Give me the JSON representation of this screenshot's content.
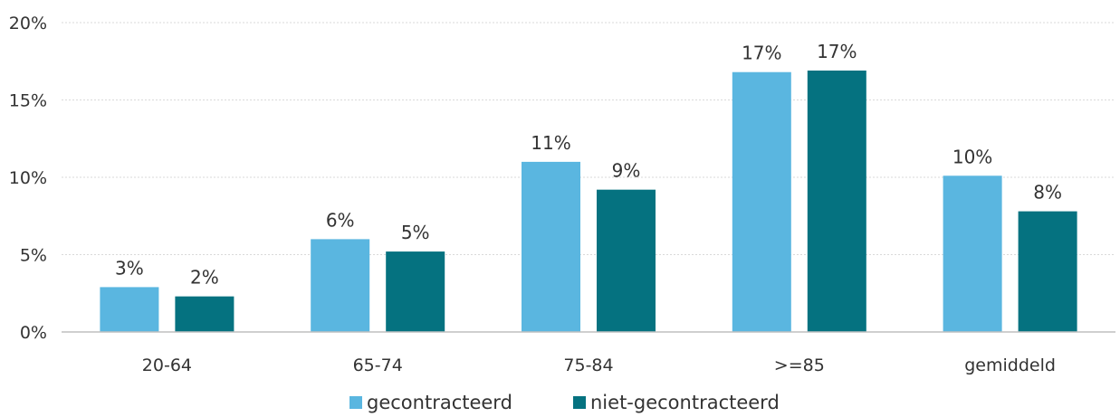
{
  "chart_data": {
    "type": "bar",
    "title": "",
    "xlabel": "",
    "ylabel": "",
    "categories": [
      "20-64",
      "65-74",
      "75-84",
      ">=85",
      "gemiddeld"
    ],
    "series": [
      {
        "name": "gecontracteerd",
        "color": "#5ab6e0",
        "values": [
          2.9,
          6.0,
          11.0,
          16.8,
          10.1
        ],
        "labels": [
          "3%",
          "6%",
          "11%",
          "17%",
          "10%"
        ]
      },
      {
        "name": "niet-gecontracteerd",
        "color": "#057280",
        "values": [
          2.3,
          5.2,
          9.2,
          16.9,
          7.8
        ],
        "labels": [
          "2%",
          "5%",
          "9%",
          "17%",
          "8%"
        ]
      }
    ],
    "ylim": [
      0,
      20
    ],
    "yticks": [
      0,
      5,
      10,
      15,
      20
    ],
    "ytick_labels": [
      "0%",
      "5%",
      "10%",
      "15%",
      "20%"
    ],
    "grid": true,
    "legend_position": "bottom"
  }
}
